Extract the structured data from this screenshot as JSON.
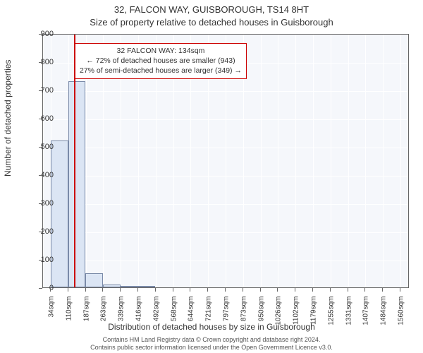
{
  "chart": {
    "type": "histogram",
    "title1": "32, FALCON WAY, GUISBOROUGH, TS14 8HT",
    "title2": "Size of property relative to detached houses in Guisborough",
    "ylabel": "Number of detached properties",
    "xlabel": "Distribution of detached houses by size in Guisborough",
    "title_fontsize": 13,
    "label_fontsize": 12,
    "tick_fontsize": 11,
    "background_color": "#f5f7fb",
    "grid_color": "#ffffff",
    "axis_color": "#666666",
    "bar_fill": "#dbe5f4",
    "bar_border": "#7a8aa8",
    "bar_border_width": 1,
    "marker_color": "#cc0000",
    "ylim": [
      0,
      900
    ],
    "ytick_step": 100,
    "yticks": [
      0,
      100,
      200,
      300,
      400,
      500,
      600,
      700,
      800,
      900
    ],
    "xlim": [
      0,
      1600
    ],
    "xticks": [
      34,
      110,
      187,
      263,
      339,
      416,
      492,
      568,
      644,
      721,
      797,
      873,
      950,
      1026,
      1102,
      1179,
      1255,
      1331,
      1407,
      1484,
      1560
    ],
    "xtick_suffix": "sqm",
    "bin_width": 76,
    "values": [
      520,
      730,
      50,
      10,
      6,
      4
    ],
    "annotation": {
      "line1": "32 FALCON WAY: 134sqm",
      "line2": "← 72% of detached houses are smaller (943)",
      "line3": "27% of semi-detached houses are larger (349) →",
      "border_color": "#cc0000",
      "background": "#ffffff",
      "fontsize": 10.5,
      "x_value": 134
    },
    "credits_line1": "Contains HM Land Registry data © Crown copyright and database right 2024.",
    "credits_line2": "Contains public sector information licensed under the Open Government Licence v3.0."
  }
}
